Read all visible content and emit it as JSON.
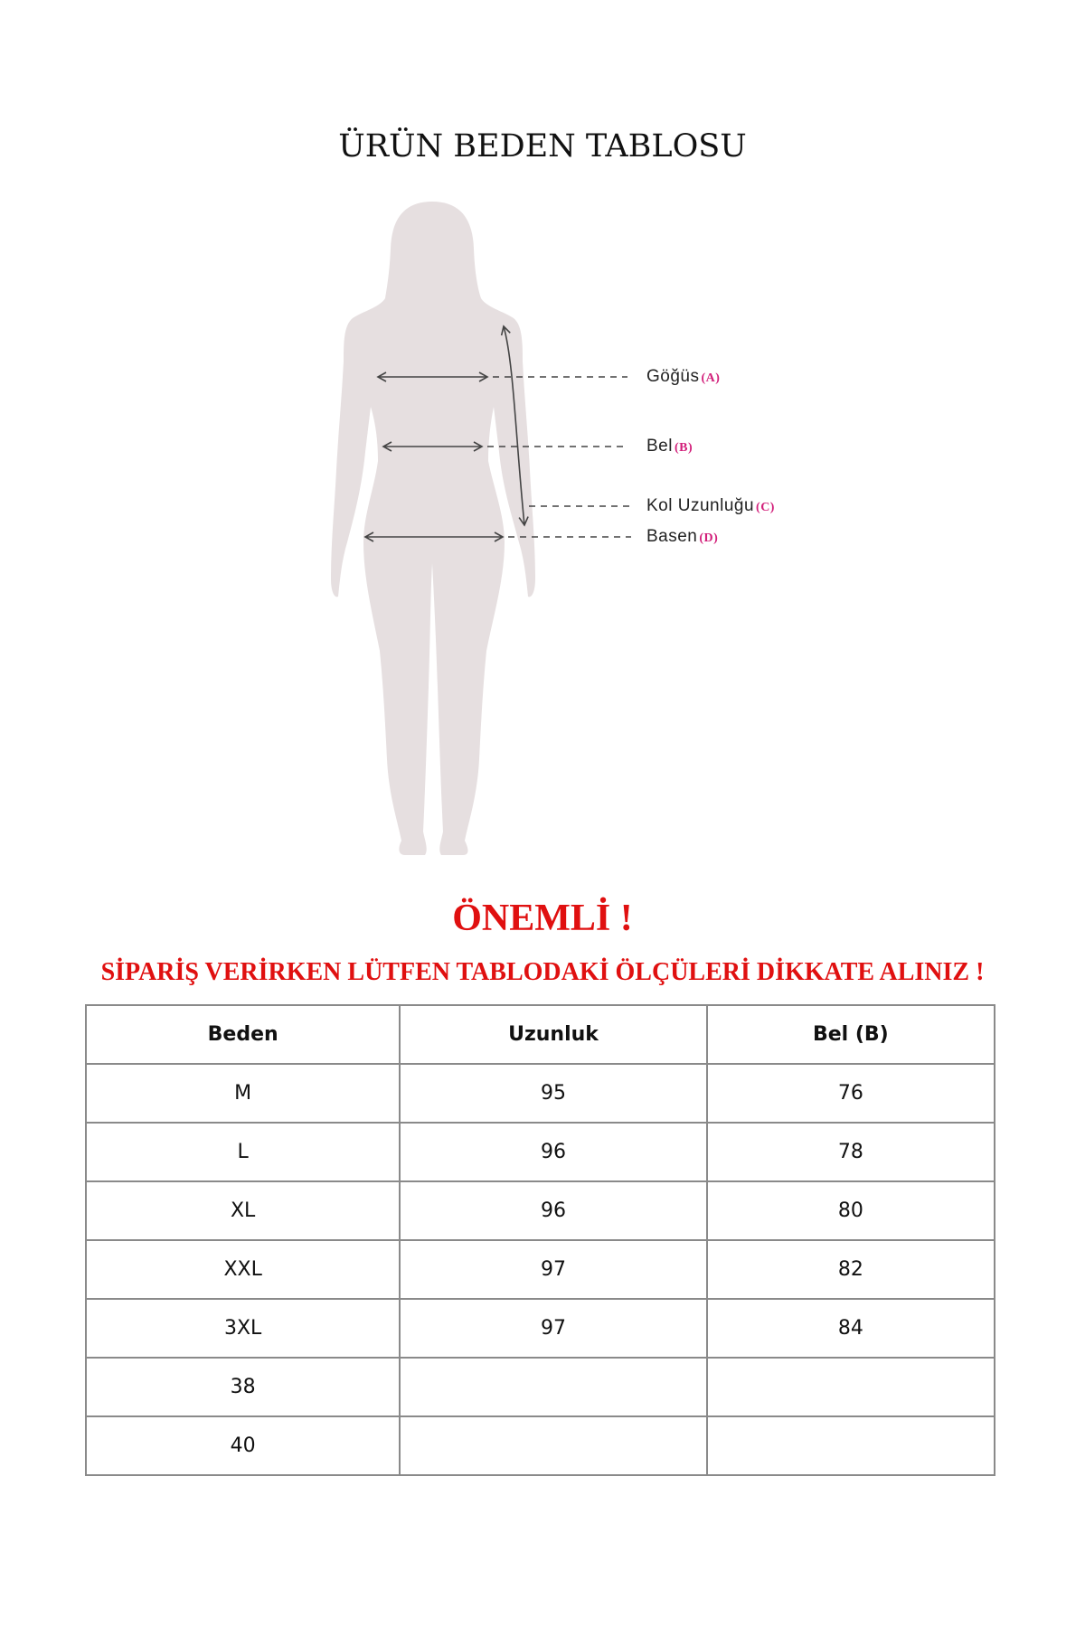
{
  "title": "ÜRÜN BEDEN TABLOSU",
  "figure": {
    "labels": [
      {
        "name": "Göğüs",
        "key": "(A)"
      },
      {
        "name": "Bel",
        "key": "(B)"
      },
      {
        "name": "Kol Uzunluğu",
        "key": "(C)"
      },
      {
        "name": "Basen",
        "key": "(D)"
      }
    ],
    "silhouette_color": "#e6dfe0",
    "key_color": "#d21f7a"
  },
  "notice": {
    "heading": "ÖNEMLİ !",
    "message": "SİPARİŞ VERİRKEN LÜTFEN TABLODAKİ ÖLÇÜLERİ DİKKATE ALINIZ !",
    "color": "#e01010"
  },
  "table": {
    "headers": [
      "Beden",
      "Uzunluk",
      "Bel (B)"
    ],
    "rows": [
      [
        "M",
        "95",
        "76"
      ],
      [
        "L",
        "96",
        "78"
      ],
      [
        "XL",
        "96",
        "80"
      ],
      [
        "XXL",
        "97",
        "82"
      ],
      [
        "3XL",
        "97",
        "84"
      ],
      [
        "38",
        "",
        ""
      ],
      [
        "40",
        "",
        ""
      ]
    ]
  }
}
